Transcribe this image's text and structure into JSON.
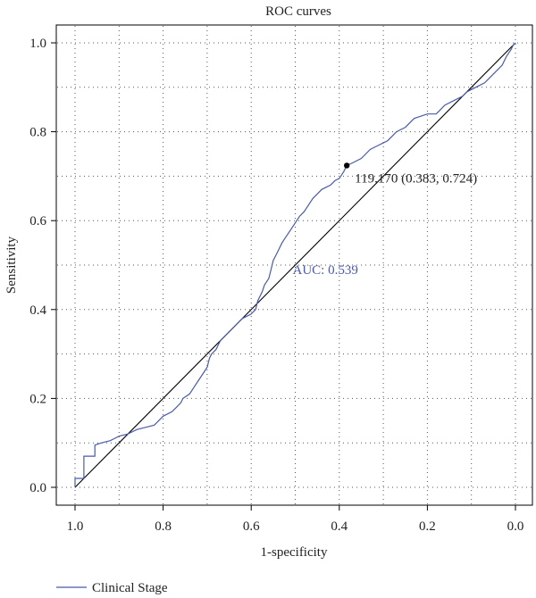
{
  "chart_data": {
    "type": "line",
    "title": "ROC curves",
    "xlabel": "1-specificity",
    "ylabel": "Sensitivity",
    "xlim": [
      1.0,
      0.0
    ],
    "x_reversed": true,
    "ylim": [
      0.0,
      1.0
    ],
    "x_ticks": [
      1.0,
      0.8,
      0.6,
      0.4,
      0.2,
      0.0
    ],
    "x_tick_labels": [
      "1.0",
      "0.8",
      "0.6",
      "0.4",
      "0.2",
      "0.0"
    ],
    "y_ticks": [
      0.0,
      0.2,
      0.4,
      0.6,
      0.8,
      1.0
    ],
    "y_tick_labels": [
      "0.0",
      "0.2",
      "0.4",
      "0.6",
      "0.8",
      "1.0"
    ],
    "grid": true,
    "grid_style": "dotted",
    "legend_position": "bottom-left",
    "series": [
      {
        "name": "Clinical Stage",
        "color": "#4a5aa8",
        "points": [
          [
            1.0,
            0.0
          ],
          [
            1.0,
            0.02
          ],
          [
            0.98,
            0.02
          ],
          [
            0.98,
            0.07
          ],
          [
            0.955,
            0.07
          ],
          [
            0.955,
            0.095
          ],
          [
            0.94,
            0.1
          ],
          [
            0.92,
            0.105
          ],
          [
            0.9,
            0.115
          ],
          [
            0.88,
            0.12
          ],
          [
            0.86,
            0.13
          ],
          [
            0.84,
            0.135
          ],
          [
            0.82,
            0.14
          ],
          [
            0.81,
            0.15
          ],
          [
            0.8,
            0.16
          ],
          [
            0.78,
            0.17
          ],
          [
            0.77,
            0.18
          ],
          [
            0.76,
            0.19
          ],
          [
            0.755,
            0.2
          ],
          [
            0.74,
            0.21
          ],
          [
            0.73,
            0.225
          ],
          [
            0.72,
            0.24
          ],
          [
            0.71,
            0.255
          ],
          [
            0.7,
            0.27
          ],
          [
            0.695,
            0.29
          ],
          [
            0.69,
            0.3
          ],
          [
            0.68,
            0.31
          ],
          [
            0.675,
            0.32
          ],
          [
            0.67,
            0.33
          ],
          [
            0.66,
            0.34
          ],
          [
            0.65,
            0.35
          ],
          [
            0.64,
            0.36
          ],
          [
            0.63,
            0.37
          ],
          [
            0.62,
            0.38
          ],
          [
            0.61,
            0.385
          ],
          [
            0.6,
            0.39
          ],
          [
            0.59,
            0.4
          ],
          [
            0.585,
            0.42
          ],
          [
            0.575,
            0.44
          ],
          [
            0.57,
            0.455
          ],
          [
            0.56,
            0.47
          ],
          [
            0.555,
            0.49
          ],
          [
            0.55,
            0.51
          ],
          [
            0.54,
            0.53
          ],
          [
            0.53,
            0.55
          ],
          [
            0.52,
            0.565
          ],
          [
            0.51,
            0.58
          ],
          [
            0.5,
            0.595
          ],
          [
            0.49,
            0.61
          ],
          [
            0.48,
            0.62
          ],
          [
            0.47,
            0.635
          ],
          [
            0.46,
            0.65
          ],
          [
            0.45,
            0.66
          ],
          [
            0.44,
            0.67
          ],
          [
            0.43,
            0.675
          ],
          [
            0.42,
            0.68
          ],
          [
            0.41,
            0.69
          ],
          [
            0.4,
            0.695
          ],
          [
            0.39,
            0.71
          ],
          [
            0.383,
            0.724
          ],
          [
            0.37,
            0.73
          ],
          [
            0.35,
            0.74
          ],
          [
            0.34,
            0.75
          ],
          [
            0.33,
            0.76
          ],
          [
            0.32,
            0.765
          ],
          [
            0.31,
            0.77
          ],
          [
            0.3,
            0.775
          ],
          [
            0.29,
            0.78
          ],
          [
            0.28,
            0.79
          ],
          [
            0.27,
            0.8
          ],
          [
            0.26,
            0.805
          ],
          [
            0.25,
            0.81
          ],
          [
            0.24,
            0.82
          ],
          [
            0.23,
            0.83
          ],
          [
            0.2,
            0.84
          ],
          [
            0.18,
            0.84
          ],
          [
            0.17,
            0.85
          ],
          [
            0.16,
            0.86
          ],
          [
            0.14,
            0.87
          ],
          [
            0.12,
            0.88
          ],
          [
            0.11,
            0.89
          ],
          [
            0.09,
            0.9
          ],
          [
            0.07,
            0.91
          ],
          [
            0.05,
            0.93
          ],
          [
            0.03,
            0.95
          ],
          [
            0.02,
            0.97
          ],
          [
            0.01,
            0.985
          ],
          [
            0.005,
            0.995
          ],
          [
            0.0,
            1.0
          ]
        ]
      }
    ],
    "reference_line": {
      "from": [
        1.0,
        0.0
      ],
      "to": [
        0.0,
        1.0
      ],
      "color": "#000000"
    },
    "threshold_point": {
      "x": 0.383,
      "y": 0.724,
      "label": "119.170 (0.383, 0.724)"
    },
    "auc_label": "AUC: 0.539"
  }
}
